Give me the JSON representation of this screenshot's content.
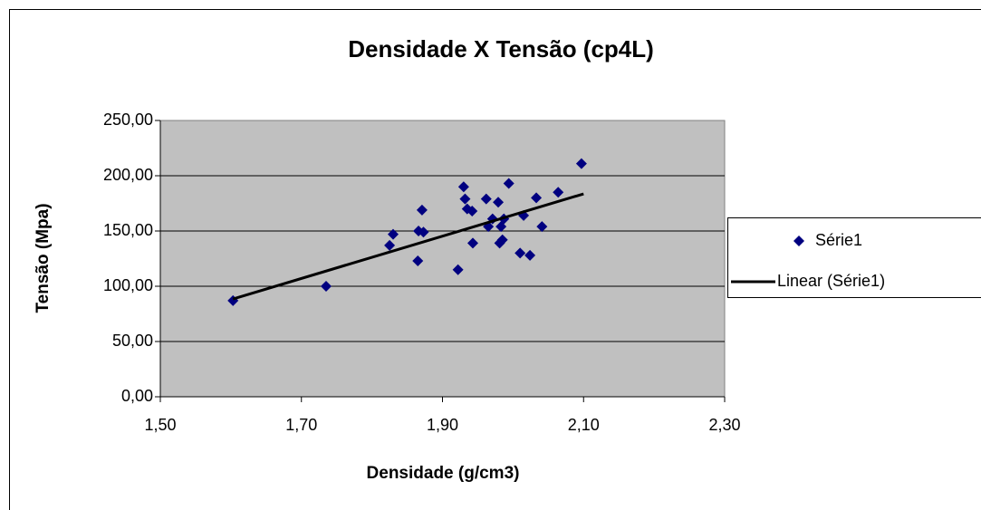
{
  "chart_data": {
    "type": "scatter",
    "title": "Densidade X Tensão (cp4L)",
    "xlabel": "Densidade (g/cm3)",
    "ylabel": "Tensão (Mpa)",
    "xlim": [
      1.5,
      2.3
    ],
    "xticks": [
      {
        "value": 1.5,
        "label": "1,50"
      },
      {
        "value": 1.7,
        "label": "1,70"
      },
      {
        "value": 1.9,
        "label": "1,90"
      },
      {
        "value": 2.1,
        "label": "2,10"
      },
      {
        "value": 2.3,
        "label": "2,30"
      }
    ],
    "ylim": [
      0,
      250
    ],
    "yticks": [
      {
        "value": 0,
        "label": "0,00"
      },
      {
        "value": 50,
        "label": "50,00"
      },
      {
        "value": 100,
        "label": "100,00"
      },
      {
        "value": 150,
        "label": "150,00"
      },
      {
        "value": 200,
        "label": "200,00"
      },
      {
        "value": 250,
        "label": "250,00"
      }
    ],
    "grid": true,
    "legend": "right",
    "series": [
      {
        "name": "Série1",
        "color": "#000080",
        "mode": "markers",
        "x": [
          1.603,
          1.735,
          1.825,
          1.83,
          1.865,
          1.866,
          1.871,
          1.873,
          1.922,
          1.93,
          1.932,
          1.935,
          1.942,
          1.943,
          1.962,
          1.965,
          1.971,
          1.979,
          1.983,
          1.981,
          1.985,
          1.987,
          1.994,
          2.01,
          2.015,
          2.024,
          2.033,
          2.041,
          2.064,
          2.097
        ],
        "values": [
          87,
          100,
          137,
          147,
          123,
          150,
          169,
          149,
          115,
          190,
          179,
          170,
          168,
          139,
          179,
          154,
          161,
          176,
          154,
          139,
          142,
          161,
          193,
          130,
          164,
          128,
          180,
          154,
          185,
          211
        ]
      },
      {
        "name": "Linear (Série1)",
        "color": "#000000",
        "mode": "line",
        "x": [
          1.603,
          2.1
        ],
        "values": [
          88.5,
          183.6
        ]
      }
    ]
  }
}
